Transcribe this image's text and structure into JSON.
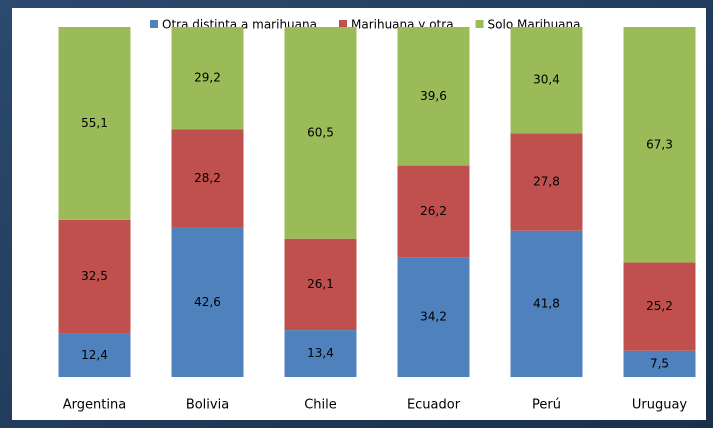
{
  "chart_data": {
    "type": "stacked_bar",
    "categories": [
      "Argentina",
      "Bolivia",
      "Chile",
      "Ecuador",
      "Perú",
      "Uruguay"
    ],
    "series": [
      {
        "name": "Otra distinta a marihuana",
        "color": "#4f81bd",
        "values": [
          12.4,
          42.6,
          13.4,
          34.2,
          41.8,
          7.5
        ],
        "value_labels": [
          "12,4",
          "42,6",
          "13,4",
          "34,2",
          "41,8",
          "7,5"
        ]
      },
      {
        "name": "Marihuana y otra",
        "color": "#c0504d",
        "values": [
          32.5,
          28.2,
          26.1,
          26.2,
          27.8,
          25.2
        ],
        "value_labels": [
          "32,5",
          "28,2",
          "26,1",
          "26,2",
          "27,8",
          "25,2"
        ]
      },
      {
        "name": "Solo Marihuana",
        "color": "#9bbb59",
        "values": [
          55.1,
          29.2,
          60.5,
          39.6,
          30.4,
          67.3
        ],
        "value_labels": [
          "55,1",
          "29,2",
          "60,5",
          "39,6",
          "30,4",
          "67,3"
        ]
      }
    ],
    "ylim": [
      0,
      100
    ]
  }
}
